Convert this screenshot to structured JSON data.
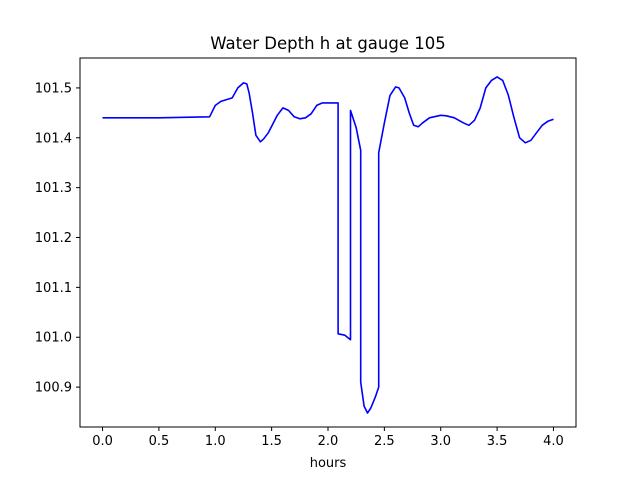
{
  "chart_data": {
    "type": "line",
    "title": "Water Depth h at gauge 105",
    "xlabel": "hours",
    "ylabel": "",
    "xlim": [
      -0.2,
      4.2
    ],
    "ylim": [
      100.82,
      101.56
    ],
    "xticks": [
      0.0,
      0.5,
      1.0,
      1.5,
      2.0,
      2.5,
      3.0,
      3.5,
      4.0
    ],
    "xtick_labels": [
      "0.0",
      "0.5",
      "1.0",
      "1.5",
      "2.0",
      "2.5",
      "3.0",
      "3.5",
      "4.0"
    ],
    "yticks": [
      100.9,
      101.0,
      101.1,
      101.2,
      101.3,
      101.4,
      101.5
    ],
    "ytick_labels": [
      "100.9",
      "101.0",
      "101.1",
      "101.2",
      "101.3",
      "101.4",
      "101.5"
    ],
    "grid": false,
    "legend": "none",
    "series": [
      {
        "color": "#0000ff",
        "x": [
          0.0,
          0.5,
          0.95,
          1.0,
          1.05,
          1.15,
          1.2,
          1.25,
          1.28,
          1.3,
          1.33,
          1.36,
          1.4,
          1.43,
          1.47,
          1.55,
          1.6,
          1.65,
          1.7,
          1.75,
          1.8,
          1.85,
          1.9,
          1.95,
          2.0,
          2.05,
          2.09,
          2.09,
          2.15,
          2.2,
          2.2,
          2.25,
          2.29,
          2.29,
          2.32,
          2.35,
          2.38,
          2.42,
          2.45,
          2.45,
          2.5,
          2.55,
          2.6,
          2.63,
          2.68,
          2.72,
          2.76,
          2.8,
          2.84,
          2.9,
          3.0,
          3.05,
          3.12,
          3.2,
          3.25,
          3.3,
          3.35,
          3.4,
          3.45,
          3.5,
          3.55,
          3.6,
          3.65,
          3.7,
          3.75,
          3.8,
          3.85,
          3.9,
          3.95,
          4.0
        ],
        "y": [
          101.44,
          101.44,
          101.442,
          101.465,
          101.473,
          101.48,
          101.5,
          101.51,
          101.508,
          101.49,
          101.45,
          101.405,
          101.392,
          101.398,
          101.41,
          101.445,
          101.46,
          101.455,
          101.442,
          101.438,
          101.44,
          101.448,
          101.465,
          101.47,
          101.47,
          101.47,
          101.47,
          101.007,
          101.004,
          100.995,
          101.455,
          101.42,
          101.375,
          100.91,
          100.862,
          100.848,
          100.858,
          100.88,
          100.9,
          101.37,
          101.43,
          101.485,
          101.502,
          101.5,
          101.48,
          101.45,
          101.425,
          101.422,
          101.43,
          101.44,
          101.445,
          101.444,
          101.44,
          101.43,
          101.425,
          101.435,
          101.46,
          101.5,
          101.515,
          101.522,
          101.515,
          101.485,
          101.44,
          101.4,
          101.39,
          101.395,
          101.41,
          101.425,
          101.433,
          101.437
        ]
      }
    ]
  }
}
